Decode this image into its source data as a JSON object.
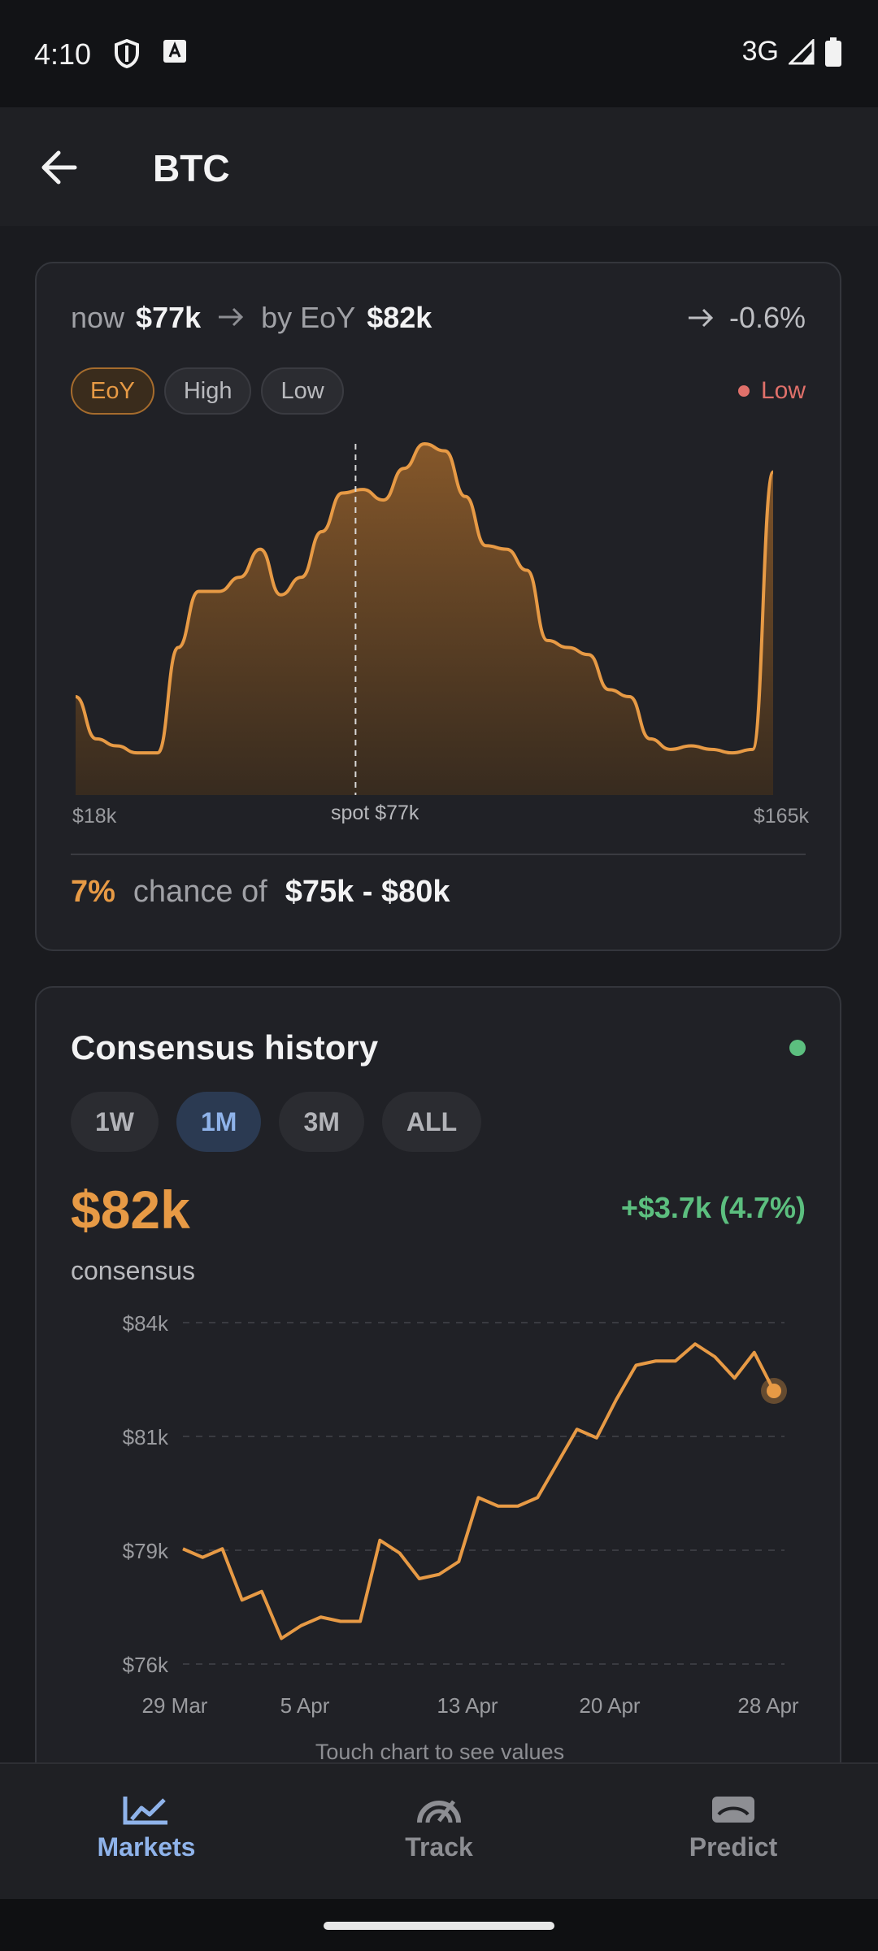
{
  "status_bar": {
    "time": "4:10",
    "network": "3G",
    "icons": [
      "shield-icon",
      "a-box-icon",
      "signal-icon",
      "battery-icon"
    ]
  },
  "app_bar": {
    "title": "BTC",
    "back_icon": "arrow-left-icon"
  },
  "forecast_card": {
    "now_label": "now",
    "now_value": "$77k",
    "by_label": "by EoY",
    "by_value": "$82k",
    "change": "-0.6%",
    "chips": [
      {
        "label": "EoY",
        "active": true
      },
      {
        "label": "High",
        "active": false
      },
      {
        "label": "Low",
        "active": false
      }
    ],
    "indicator_label": "Low",
    "indicator_color": "#e0706a",
    "axis_min": "$18k",
    "axis_spot": "spot $77k",
    "axis_max": "$165k",
    "chance_pct": "7%",
    "chance_text": "chance of",
    "chance_range": "$75k - $80k"
  },
  "consensus_card": {
    "title": "Consensus history",
    "ranges": [
      {
        "label": "1W",
        "active": false
      },
      {
        "label": "1M",
        "active": true
      },
      {
        "label": "3M",
        "active": false
      },
      {
        "label": "ALL",
        "active": false
      }
    ],
    "value": "$82k",
    "value_label": "consensus",
    "change": "+$3.7k (4.7%)",
    "hint": "Touch chart to see values"
  },
  "chart_data": [
    {
      "type": "area",
      "x_range": [
        18,
        165
      ],
      "x_unit": "$k",
      "tick_labels": [
        "$18k",
        "spot $77k",
        "$165k"
      ],
      "marker_x": 77,
      "values": [
        0.28,
        0.16,
        0.14,
        0.12,
        0.12,
        0.42,
        0.58,
        0.58,
        0.62,
        0.7,
        0.57,
        0.62,
        0.75,
        0.86,
        0.87,
        0.84,
        0.93,
        1.0,
        0.98,
        0.85,
        0.71,
        0.7,
        0.64,
        0.44,
        0.42,
        0.4,
        0.3,
        0.28,
        0.16,
        0.13,
        0.14,
        0.13,
        0.12,
        0.13,
        0.92
      ],
      "color": "#e79a45"
    },
    {
      "type": "line",
      "x_labels": [
        "29 Mar",
        "5 Apr",
        "13 Apr",
        "20 Apr",
        "28 Apr"
      ],
      "y_ticks": [
        "$84k",
        "$81k",
        "$79k",
        "$76k"
      ],
      "ylim": [
        76,
        84
      ],
      "values": [
        78.7,
        78.5,
        78.7,
        77.5,
        77.7,
        76.6,
        76.9,
        77.1,
        77.0,
        77.0,
        78.9,
        78.6,
        78.0,
        78.1,
        78.4,
        79.9,
        79.7,
        79.7,
        79.9,
        80.7,
        81.5,
        81.3,
        82.2,
        83.0,
        83.1,
        83.1,
        83.5,
        83.2,
        82.7,
        83.3,
        82.4
      ],
      "color": "#e79a45"
    }
  ],
  "bottom_nav": {
    "items": [
      {
        "label": "Markets",
        "icon": "chart-line-icon",
        "active": true
      },
      {
        "label": "Track",
        "icon": "gauge-icon",
        "active": false
      },
      {
        "label": "Predict",
        "icon": "card-icon",
        "active": false
      }
    ]
  }
}
